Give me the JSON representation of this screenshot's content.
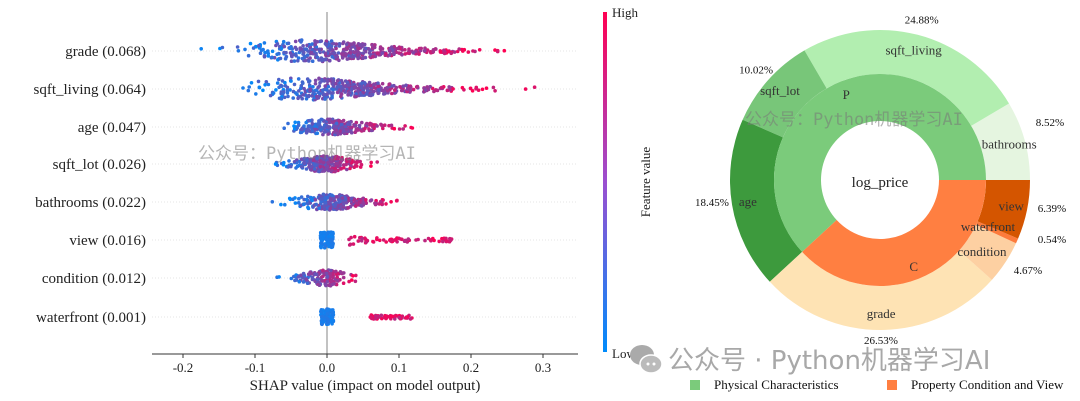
{
  "chart_data": [
    {
      "type": "scatter",
      "subtype": "shap-beeswarm",
      "xlabel": "SHAP value (impact on model output)",
      "xlim": [
        -0.24,
        0.34
      ],
      "xticks": [
        "-0.2",
        "-0.1",
        "0.0",
        "0.1",
        "0.2",
        "0.3"
      ],
      "features": [
        {
          "label": "grade (0.068)",
          "range": [
            -0.21,
            0.29
          ]
        },
        {
          "label": "sqft_living (0.064)",
          "range": [
            -0.19,
            0.31
          ]
        },
        {
          "label": "age (0.047)",
          "range": [
            -0.1,
            0.15
          ]
        },
        {
          "label": "sqft_lot (0.026)",
          "range": [
            -0.1,
            0.09
          ]
        },
        {
          "label": "bathrooms (0.022)",
          "range": [
            -0.09,
            0.14
          ]
        },
        {
          "label": "view (0.016)",
          "range": [
            -0.01,
            0.18
          ]
        },
        {
          "label": "condition (0.012)",
          "range": [
            -0.09,
            0.07
          ]
        },
        {
          "label": "waterfront (0.001)",
          "range": [
            -0.005,
            0.12
          ]
        }
      ],
      "colorbar": {
        "label": "Feature value",
        "high": "High",
        "low": "Low",
        "high_color": "#ff0052",
        "low_color": "#008bfb"
      }
    },
    {
      "type": "pie",
      "subtype": "nested-donut",
      "center_label": "log_price",
      "inner": [
        {
          "label": "P",
          "value": 61.87,
          "color": "#7bcb7b"
        },
        {
          "label": "C",
          "value": 38.13,
          "color": "#ff7f41"
        }
      ],
      "outer": [
        {
          "label": "bathrooms",
          "pct": "8.52%",
          "value": 8.52,
          "color": "#e5f5e0"
        },
        {
          "label": "sqft_living",
          "pct": "24.88%",
          "value": 24.88,
          "color": "#b2eeb0"
        },
        {
          "label": "sqft_lot",
          "pct": "10.02%",
          "value": 10.02,
          "color": "#78c679"
        },
        {
          "label": "age",
          "pct": "18.45%",
          "value": 18.45,
          "color": "#3d9a3d"
        },
        {
          "label": "grade",
          "pct": "26.53%",
          "value": 26.53,
          "color": "#fee3b4"
        },
        {
          "label": "condition",
          "pct": "4.67%",
          "value": 4.67,
          "color": "#fdd0a2"
        },
        {
          "label": "waterfront",
          "pct": "0.54%",
          "value": 0.54,
          "color": "#fd7b3c"
        },
        {
          "label": "view",
          "pct": "6.39%",
          "value": 6.39,
          "color": "#d45500"
        }
      ],
      "legend": [
        {
          "label": "Physical Characteristics",
          "color": "#7bcb7b"
        },
        {
          "label": "Property Condition and View",
          "color": "#ff7f41"
        }
      ]
    }
  ],
  "watermarks": {
    "overlay": "公众号：Python机器学习AI",
    "footer": "公众号 · Python机器学习AI"
  }
}
